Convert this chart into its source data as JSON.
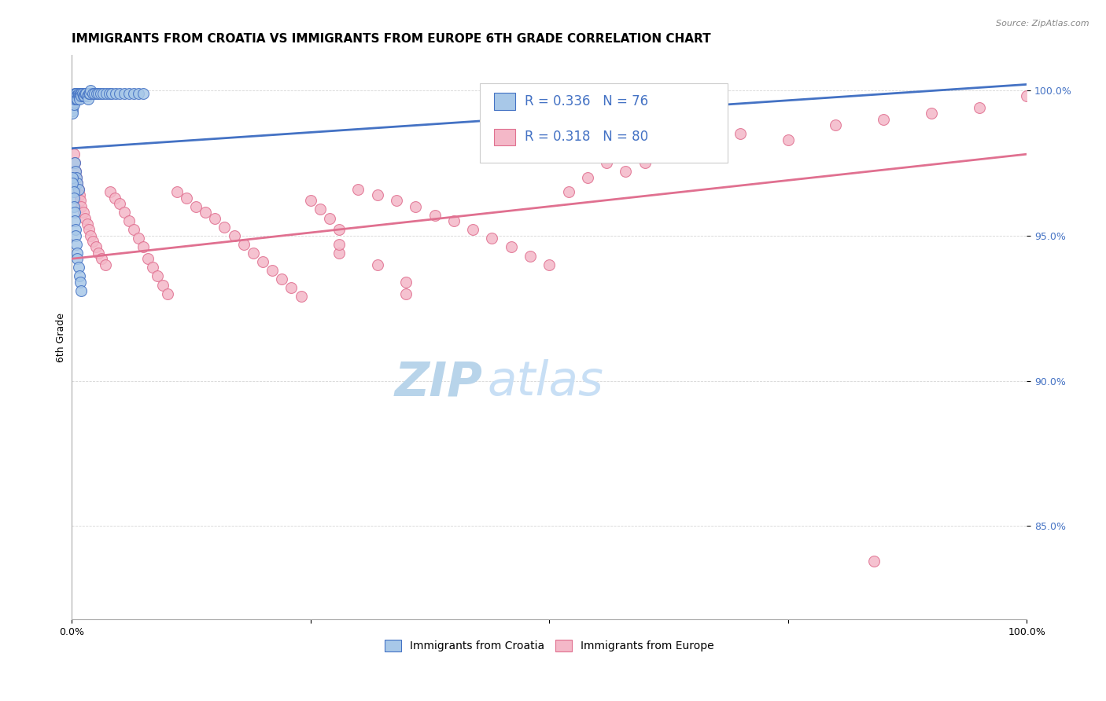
{
  "title": "IMMIGRANTS FROM CROATIA VS IMMIGRANTS FROM EUROPE 6TH GRADE CORRELATION CHART",
  "source_text": "Source: ZipAtlas.com",
  "ylabel": "6th Grade",
  "watermark_zip": "ZIP",
  "watermark_atlas": "atlas",
  "legend_r1": "R = 0.336",
  "legend_n1": "N = 76",
  "legend_r2": "R = 0.318",
  "legend_n2": "N = 80",
  "color_blue": "#a8c8e8",
  "color_pink": "#f4b8c8",
  "color_blue_line": "#4472c4",
  "color_pink_line": "#e07090",
  "color_blue_edge": "#4472c4",
  "color_pink_edge": "#e07090",
  "xmin": 0.0,
  "xmax": 1.0,
  "ymin": 0.818,
  "ymax": 1.012,
  "yticks": [
    0.85,
    0.9,
    0.95,
    1.0
  ],
  "ytick_labels": [
    "85.0%",
    "90.0%",
    "95.0%",
    "100.0%"
  ],
  "xticks": [
    0.0,
    0.25,
    0.5,
    0.75,
    1.0
  ],
  "xtick_labels": [
    "0.0%",
    "",
    "",
    "",
    "100.0%"
  ],
  "blue_scatter_x": [
    0.001,
    0.001,
    0.001,
    0.001,
    0.001,
    0.001,
    0.001,
    0.001,
    0.002,
    0.002,
    0.002,
    0.002,
    0.003,
    0.003,
    0.003,
    0.004,
    0.004,
    0.005,
    0.005,
    0.005,
    0.006,
    0.006,
    0.007,
    0.007,
    0.008,
    0.008,
    0.009,
    0.01,
    0.01,
    0.011,
    0.012,
    0.013,
    0.014,
    0.015,
    0.016,
    0.017,
    0.018,
    0.019,
    0.02,
    0.022,
    0.024,
    0.026,
    0.028,
    0.03,
    0.033,
    0.036,
    0.039,
    0.042,
    0.046,
    0.05,
    0.055,
    0.06,
    0.065,
    0.07,
    0.075,
    0.003,
    0.004,
    0.005,
    0.006,
    0.007,
    0.001,
    0.001,
    0.002,
    0.002,
    0.002,
    0.003,
    0.003,
    0.004,
    0.004,
    0.005,
    0.006,
    0.006,
    0.007,
    0.008,
    0.009,
    0.01
  ],
  "blue_scatter_y": [
    0.998,
    0.997,
    0.996,
    0.996,
    0.995,
    0.994,
    0.993,
    0.992,
    0.998,
    0.997,
    0.996,
    0.995,
    0.999,
    0.998,
    0.997,
    0.999,
    0.998,
    0.999,
    0.998,
    0.997,
    0.998,
    0.997,
    0.999,
    0.998,
    0.998,
    0.997,
    0.999,
    0.999,
    0.998,
    0.999,
    0.998,
    0.998,
    0.999,
    0.999,
    0.998,
    0.997,
    0.999,
    0.999,
    1.0,
    0.999,
    0.999,
    0.999,
    0.999,
    0.999,
    0.999,
    0.999,
    0.999,
    0.999,
    0.999,
    0.999,
    0.999,
    0.999,
    0.999,
    0.999,
    0.999,
    0.975,
    0.972,
    0.97,
    0.968,
    0.966,
    0.97,
    0.968,
    0.965,
    0.963,
    0.96,
    0.958,
    0.955,
    0.952,
    0.95,
    0.947,
    0.944,
    0.942,
    0.939,
    0.936,
    0.934,
    0.931
  ],
  "pink_scatter_x": [
    0.002,
    0.003,
    0.004,
    0.005,
    0.006,
    0.007,
    0.008,
    0.009,
    0.01,
    0.012,
    0.014,
    0.016,
    0.018,
    0.02,
    0.022,
    0.025,
    0.028,
    0.031,
    0.035,
    0.04,
    0.045,
    0.05,
    0.055,
    0.06,
    0.065,
    0.07,
    0.075,
    0.08,
    0.085,
    0.09,
    0.095,
    0.1,
    0.11,
    0.12,
    0.13,
    0.14,
    0.15,
    0.16,
    0.17,
    0.18,
    0.19,
    0.2,
    0.21,
    0.22,
    0.23,
    0.24,
    0.25,
    0.26,
    0.27,
    0.28,
    0.3,
    0.32,
    0.34,
    0.36,
    0.38,
    0.4,
    0.42,
    0.44,
    0.46,
    0.48,
    0.5,
    0.52,
    0.54,
    0.56,
    0.58,
    0.6,
    0.65,
    0.7,
    0.75,
    0.8,
    0.85,
    0.9,
    0.95,
    1.0,
    0.35,
    0.35,
    0.32,
    0.28,
    0.28,
    0.84
  ],
  "pink_scatter_y": [
    0.978,
    0.975,
    0.972,
    0.97,
    0.968,
    0.966,
    0.964,
    0.962,
    0.96,
    0.958,
    0.956,
    0.954,
    0.952,
    0.95,
    0.948,
    0.946,
    0.944,
    0.942,
    0.94,
    0.965,
    0.963,
    0.961,
    0.958,
    0.955,
    0.952,
    0.949,
    0.946,
    0.942,
    0.939,
    0.936,
    0.933,
    0.93,
    0.965,
    0.963,
    0.96,
    0.958,
    0.956,
    0.953,
    0.95,
    0.947,
    0.944,
    0.941,
    0.938,
    0.935,
    0.932,
    0.929,
    0.962,
    0.959,
    0.956,
    0.952,
    0.966,
    0.964,
    0.962,
    0.96,
    0.957,
    0.955,
    0.952,
    0.949,
    0.946,
    0.943,
    0.94,
    0.965,
    0.97,
    0.975,
    0.972,
    0.975,
    0.98,
    0.985,
    0.983,
    0.988,
    0.99,
    0.992,
    0.994,
    0.998,
    0.93,
    0.934,
    0.94,
    0.944,
    0.947,
    0.838
  ],
  "blue_line_x": [
    0.0,
    1.0
  ],
  "blue_line_y": [
    0.98,
    1.002
  ],
  "pink_line_x": [
    0.0,
    1.0
  ],
  "pink_line_y": [
    0.942,
    0.978
  ],
  "bg_color": "#ffffff",
  "title_fontsize": 11,
  "axis_label_fontsize": 9,
  "tick_fontsize": 9,
  "legend_fontsize": 11,
  "watermark_zip_fontsize": 44,
  "watermark_atlas_fontsize": 44,
  "watermark_color_zip": "#b8d4ea",
  "watermark_color_atlas": "#c8dff5"
}
